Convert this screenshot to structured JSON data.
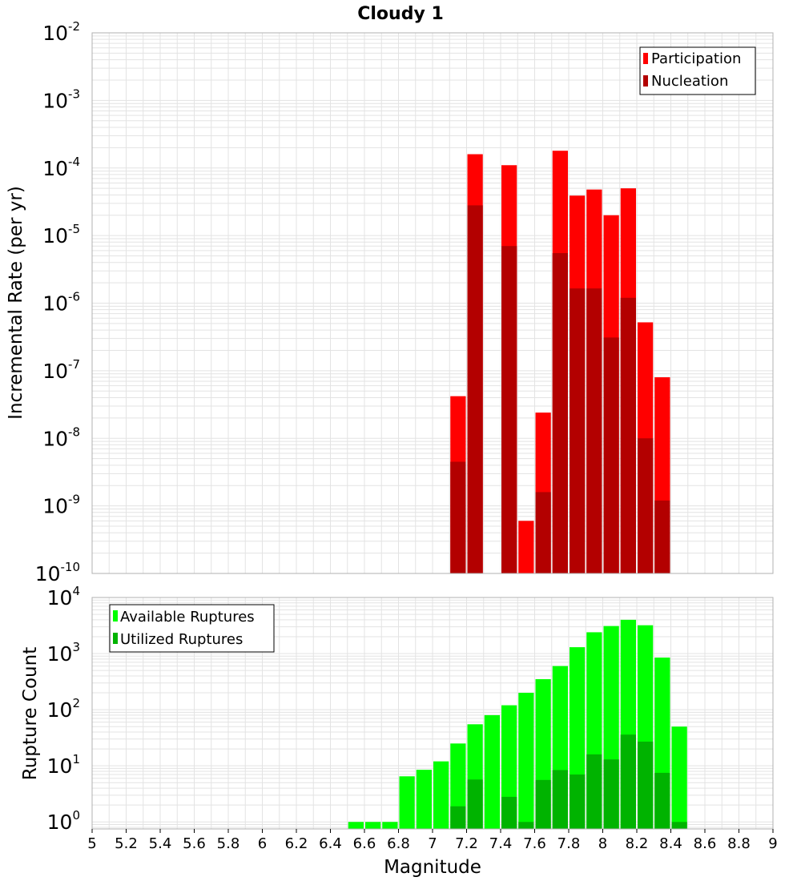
{
  "title": "Cloudy 1",
  "colors": {
    "participation": "#ff0000",
    "nucleation": "#b30000",
    "available": "#00ff00",
    "utilized": "#00b300",
    "grid": "#e3e3e3",
    "frame": "#b0b0b0"
  },
  "chart_data": [
    {
      "type": "bar",
      "ylabel": "Incremental Rate (per yr)",
      "yscale": "log",
      "ylim": [
        1e-10,
        0.01
      ],
      "xlim": [
        5,
        9
      ],
      "bin_width": 0.1,
      "y_ticks": [
        {
          "base": "10",
          "exp": "-10",
          "value": 1e-10
        },
        {
          "base": "10",
          "exp": "-9",
          "value": 1e-09
        },
        {
          "base": "10",
          "exp": "-8",
          "value": 1e-08
        },
        {
          "base": "10",
          "exp": "-7",
          "value": 1e-07
        },
        {
          "base": "10",
          "exp": "-6",
          "value": 1e-06
        },
        {
          "base": "10",
          "exp": "-5",
          "value": 1e-05
        },
        {
          "base": "10",
          "exp": "-4",
          "value": 0.0001
        },
        {
          "base": "10",
          "exp": "-3",
          "value": 0.001
        },
        {
          "base": "10",
          "exp": "-2",
          "value": 0.01
        }
      ],
      "legend": {
        "position": "top-right",
        "items": [
          "Participation",
          "Nucleation"
        ]
      },
      "series": [
        {
          "name": "Participation",
          "x": [
            7.15,
            7.25,
            7.45,
            7.55,
            7.65,
            7.75,
            7.85,
            7.95,
            8.05,
            8.15,
            8.25,
            8.35
          ],
          "values": [
            4.2e-08,
            0.00016,
            0.00011,
            6e-10,
            2.4e-08,
            0.00018,
            3.9e-05,
            4.8e-05,
            2e-05,
            5e-05,
            5.2e-07,
            8e-08
          ]
        },
        {
          "name": "Nucleation",
          "x": [
            7.15,
            7.25,
            7.45,
            7.65,
            7.75,
            7.85,
            7.95,
            8.05,
            8.15,
            8.25,
            8.35
          ],
          "values": [
            4.5e-09,
            2.8e-05,
            7e-06,
            1.6e-09,
            5.5e-06,
            1.65e-06,
            1.65e-06,
            3.1e-07,
            1.2e-06,
            1e-08,
            1.2e-09
          ]
        }
      ]
    },
    {
      "type": "bar",
      "xlabel": "Magnitude",
      "ylabel": "Rupture Count",
      "yscale": "log",
      "ylim": [
        0.75,
        10000
      ],
      "xlim": [
        5,
        9
      ],
      "bin_width": 0.1,
      "x_ticks": [
        "5",
        "5.2",
        "5.4",
        "5.6",
        "5.8",
        "6",
        "6.2",
        "6.4",
        "6.6",
        "6.8",
        "7",
        "7.2",
        "7.4",
        "7.6",
        "7.8",
        "8",
        "8.2",
        "8.4",
        "8.6",
        "8.8",
        "9"
      ],
      "y_ticks": [
        {
          "base": "10",
          "exp": "0",
          "value": 1
        },
        {
          "base": "10",
          "exp": "1",
          "value": 10
        },
        {
          "base": "10",
          "exp": "2",
          "value": 100
        },
        {
          "base": "10",
          "exp": "3",
          "value": 1000
        },
        {
          "base": "10",
          "exp": "4",
          "value": 10000
        }
      ],
      "legend": {
        "position": "top-left",
        "items": [
          "Available Ruptures",
          "Utilized Ruptures"
        ]
      },
      "series": [
        {
          "name": "Available Ruptures",
          "x": [
            6.55,
            6.65,
            6.75,
            6.85,
            6.95,
            7.05,
            7.15,
            7.25,
            7.35,
            7.45,
            7.55,
            7.65,
            7.75,
            7.85,
            7.95,
            8.05,
            8.15,
            8.25,
            8.35,
            8.45
          ],
          "values": [
            1,
            1,
            1,
            6.5,
            8.5,
            12,
            25,
            55,
            80,
            120,
            200,
            350,
            600,
            1300,
            2400,
            3100,
            4000,
            3200,
            850,
            50
          ]
        },
        {
          "name": "Utilized Ruptures",
          "x": [
            7.15,
            7.25,
            7.45,
            7.55,
            7.65,
            7.75,
            7.85,
            7.95,
            8.05,
            8.15,
            8.25,
            8.35,
            8.45
          ],
          "values": [
            1.9,
            5.7,
            2.8,
            1,
            5.6,
            8.4,
            7,
            16,
            13,
            36,
            27,
            7.5,
            1
          ]
        }
      ]
    }
  ]
}
